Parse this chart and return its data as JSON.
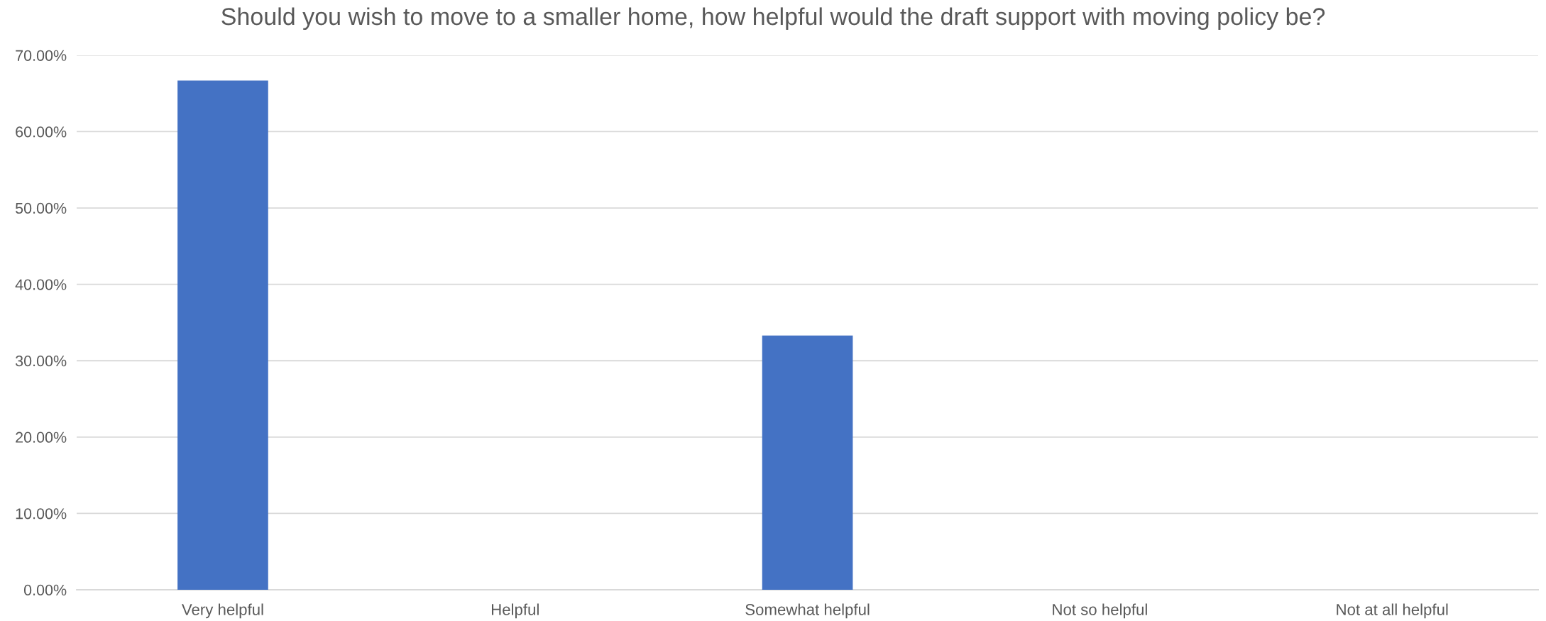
{
  "chart_data": {
    "type": "bar",
    "title": "Should you wish to move to a smaller home, how helpful would the draft support with moving policy be?",
    "categories": [
      "Very helpful",
      "Helpful",
      "Somewhat helpful",
      "Not so helpful",
      "Not at all helpful"
    ],
    "values": [
      66.7,
      0,
      33.3,
      0,
      0
    ],
    "color": "#4472c4",
    "ylim": [
      0,
      70
    ],
    "yticks": [
      {
        "value": 0,
        "label": "0.00%"
      },
      {
        "value": 10,
        "label": "10.00%"
      },
      {
        "value": 20,
        "label": "20.00%"
      },
      {
        "value": 30,
        "label": "30.00%"
      },
      {
        "value": 40,
        "label": "40.00%"
      },
      {
        "value": 50,
        "label": "50.00%"
      },
      {
        "value": 60,
        "label": "60.00%"
      },
      {
        "value": 70,
        "label": "70.00%"
      }
    ],
    "grid": "y"
  }
}
